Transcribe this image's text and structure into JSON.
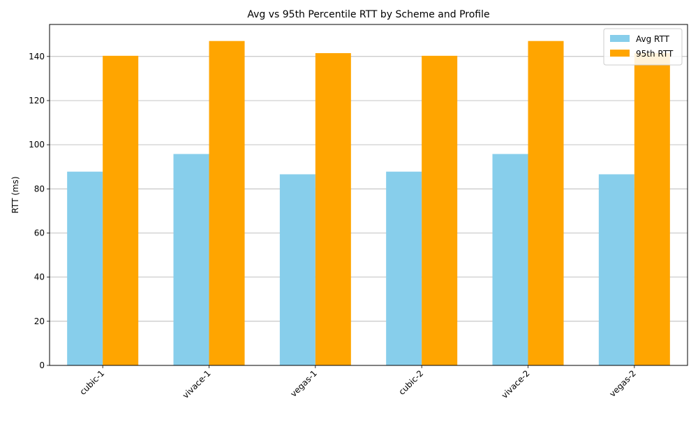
{
  "chart_data": {
    "type": "bar",
    "title": "Avg vs 95th Percentile RTT by Scheme and Profile",
    "xlabel": "",
    "ylabel": "RTT (ms)",
    "categories": [
      "cubic-1",
      "vivace-1",
      "vegas-1",
      "cubic-2",
      "vivace-2",
      "vegas-2"
    ],
    "series": [
      {
        "name": "Avg RTT",
        "color": "#87ceeb",
        "values": [
          87.8,
          95.8,
          86.6,
          87.8,
          95.8,
          86.6
        ]
      },
      {
        "name": "95th RTT",
        "color": "#ffa500",
        "values": [
          140.3,
          147.0,
          141.5,
          140.3,
          147.0,
          141.5
        ]
      }
    ],
    "ylim": [
      0,
      154.5
    ],
    "yticks": [
      0,
      20,
      40,
      60,
      80,
      100,
      120,
      140
    ],
    "grid": "y",
    "legend_position": "top-right"
  }
}
